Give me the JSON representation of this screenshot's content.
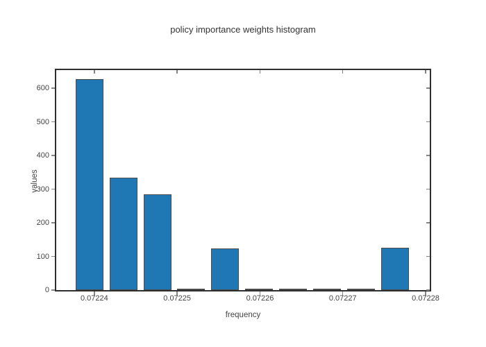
{
  "chart_data": {
    "type": "bar",
    "title": "policy importance weights histogram",
    "xlabel": "frequency",
    "ylabel": "values",
    "x": [
      0.0722394,
      0.0722435,
      0.0722476,
      0.0722517,
      0.0722558,
      0.0722599,
      0.072264,
      0.0722681,
      0.0722722,
      0.0722763
    ],
    "values": [
      627,
      335,
      285,
      2,
      124,
      2,
      2,
      2,
      2,
      126
    ],
    "bar_width": 3.35e-06,
    "x_ticks": [
      0.07224,
      0.07225,
      0.07226,
      0.07227,
      0.07228
    ],
    "x_tick_labels": [
      "0.07224",
      "0.07225",
      "0.07226",
      "0.07227",
      "0.07228"
    ],
    "y_ticks": [
      0,
      100,
      200,
      300,
      400,
      500,
      600
    ],
    "y_tick_labels": [
      "0",
      "100",
      "200",
      "300",
      "400",
      "500",
      "600"
    ],
    "xlim": [
      0.0722354,
      0.0722805
    ],
    "ylim": [
      0,
      654
    ],
    "grid": false,
    "legend": false,
    "tick_style": "outside left/bottom, mirrored inside right/top",
    "bar_color": "#1f77b4",
    "bar_edge_color": "#4c4c4c",
    "axis_color": "#2e2e2e",
    "tick_color": "#858585",
    "text_color": "#444444",
    "background_color": "#ffffff"
  }
}
